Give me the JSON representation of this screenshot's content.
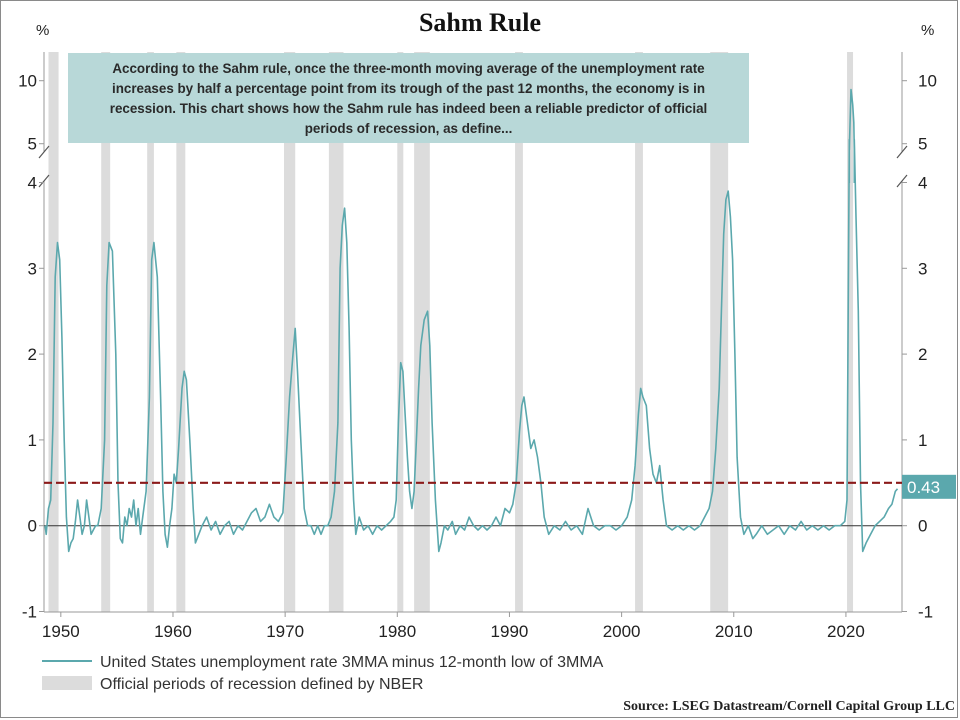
{
  "chart_data": {
    "type": "line",
    "title": "Sahm Rule",
    "y_unit_label": "%",
    "y_upper_ticks": [
      "10",
      "5"
    ],
    "y_lower_ticks": [
      "4",
      "3",
      "2",
      "1",
      "0",
      "-1"
    ],
    "x_ticks": [
      "1950",
      "1960",
      "1970",
      "1980",
      "1990",
      "2000",
      "2010",
      "2020"
    ],
    "x_range": [
      1948.5,
      2025
    ],
    "y_range_lower": [
      -1,
      4.5
    ],
    "y_range_upper": [
      4.5,
      10
    ],
    "threshold": 0.5,
    "last_value_label": "0.43",
    "annotation": "According to the Sahm rule, once the three-month moving average of the unemployment rate increases by half a percentage point from its trough of the past 12 months, the economy is in recession. This chart shows how the Sahm rule has indeed been a reliable predictor of official periods of recession, as define...",
    "legend": [
      "United States unemployment rate 3MMA minus 12-month low of 3MMA",
      "Official periods of recession defined by NBER"
    ],
    "source": "Source: LSEG Datastream/Cornell Capital Group LLC",
    "recessions": [
      [
        1948.9,
        1949.8
      ],
      [
        1953.6,
        1954.4
      ],
      [
        1957.7,
        1958.3
      ],
      [
        1960.3,
        1961.1
      ],
      [
        1969.9,
        1970.9
      ],
      [
        1973.9,
        1975.2
      ],
      [
        1980.0,
        1980.5
      ],
      [
        1981.5,
        1982.9
      ],
      [
        1990.5,
        1991.2
      ],
      [
        2001.2,
        2001.9
      ],
      [
        2007.9,
        2009.5
      ],
      [
        2020.1,
        2020.4
      ]
    ],
    "series": [
      {
        "name": "United States unemployment rate 3MMA minus 12-month low of 3MMA",
        "color": "#5ba8ad",
        "points": [
          [
            1948.6,
            0
          ],
          [
            1948.7,
            -0.1
          ],
          [
            1948.9,
            0.2
          ],
          [
            1949.1,
            0.3
          ],
          [
            1949.3,
            1.2
          ],
          [
            1949.5,
            2.9
          ],
          [
            1949.7,
            3.3
          ],
          [
            1949.9,
            3.1
          ],
          [
            1950.1,
            2.2
          ],
          [
            1950.3,
            1.0
          ],
          [
            1950.5,
            0.1
          ],
          [
            1950.7,
            -0.3
          ],
          [
            1950.9,
            -0.2
          ],
          [
            1951.1,
            -0.15
          ],
          [
            1951.3,
            0.05
          ],
          [
            1951.5,
            0.3
          ],
          [
            1951.7,
            0.1
          ],
          [
            1951.9,
            -0.1
          ],
          [
            1952.1,
            0
          ],
          [
            1952.3,
            0.3
          ],
          [
            1952.5,
            0.1
          ],
          [
            1952.7,
            -0.1
          ],
          [
            1952.9,
            -0.05
          ],
          [
            1953.1,
            0
          ],
          [
            1953.3,
            0
          ],
          [
            1953.6,
            0.2
          ],
          [
            1953.9,
            1.0
          ],
          [
            1954.1,
            2.8
          ],
          [
            1954.3,
            3.3
          ],
          [
            1954.6,
            3.2
          ],
          [
            1954.9,
            2.0
          ],
          [
            1955.1,
            0.5
          ],
          [
            1955.3,
            -0.15
          ],
          [
            1955.5,
            -0.2
          ],
          [
            1955.7,
            0.1
          ],
          [
            1955.9,
            0
          ],
          [
            1956.1,
            0.2
          ],
          [
            1956.3,
            0.1
          ],
          [
            1956.5,
            0.3
          ],
          [
            1956.7,
            0
          ],
          [
            1956.9,
            0.2
          ],
          [
            1957.1,
            -0.1
          ],
          [
            1957.3,
            0.1
          ],
          [
            1957.6,
            0.4
          ],
          [
            1957.9,
            1.5
          ],
          [
            1958.1,
            3.1
          ],
          [
            1958.3,
            3.3
          ],
          [
            1958.6,
            2.9
          ],
          [
            1958.9,
            1.5
          ],
          [
            1959.1,
            0.4
          ],
          [
            1959.3,
            -0.1
          ],
          [
            1959.5,
            -0.25
          ],
          [
            1959.7,
            0
          ],
          [
            1959.9,
            0.2
          ],
          [
            1960.1,
            0.6
          ],
          [
            1960.3,
            0.5
          ],
          [
            1960.5,
            0.9
          ],
          [
            1960.8,
            1.6
          ],
          [
            1961.0,
            1.8
          ],
          [
            1961.2,
            1.7
          ],
          [
            1961.5,
            1.0
          ],
          [
            1961.8,
            0.2
          ],
          [
            1962.0,
            -0.2
          ],
          [
            1962.3,
            -0.1
          ],
          [
            1962.6,
            0
          ],
          [
            1963,
            0.1
          ],
          [
            1963.4,
            -0.05
          ],
          [
            1963.8,
            0.05
          ],
          [
            1964.2,
            -0.1
          ],
          [
            1964.6,
            0
          ],
          [
            1965,
            0.05
          ],
          [
            1965.4,
            -0.1
          ],
          [
            1965.8,
            0
          ],
          [
            1966.2,
            -0.05
          ],
          [
            1966.6,
            0.05
          ],
          [
            1967,
            0.15
          ],
          [
            1967.4,
            0.2
          ],
          [
            1967.8,
            0.05
          ],
          [
            1968.2,
            0.1
          ],
          [
            1968.6,
            0.25
          ],
          [
            1969,
            0.1
          ],
          [
            1969.4,
            0.05
          ],
          [
            1969.8,
            0.15
          ],
          [
            1970.1,
            0.8
          ],
          [
            1970.4,
            1.5
          ],
          [
            1970.7,
            2.0
          ],
          [
            1970.9,
            2.3
          ],
          [
            1971.1,
            1.8
          ],
          [
            1971.4,
            1.0
          ],
          [
            1971.7,
            0.2
          ],
          [
            1972,
            0
          ],
          [
            1972.3,
            0
          ],
          [
            1972.6,
            -0.1
          ],
          [
            1972.9,
            0
          ],
          [
            1973.2,
            -0.1
          ],
          [
            1973.5,
            0
          ],
          [
            1973.8,
            0
          ],
          [
            1974.1,
            0.1
          ],
          [
            1974.4,
            0.4
          ],
          [
            1974.7,
            1.2
          ],
          [
            1974.9,
            3.0
          ],
          [
            1975.1,
            3.5
          ],
          [
            1975.3,
            3.7
          ],
          [
            1975.5,
            3.3
          ],
          [
            1975.7,
            2.3
          ],
          [
            1975.9,
            1.0
          ],
          [
            1976.1,
            0.3
          ],
          [
            1976.3,
            -0.1
          ],
          [
            1976.6,
            0.1
          ],
          [
            1977,
            -0.05
          ],
          [
            1977.4,
            0
          ],
          [
            1977.8,
            -0.1
          ],
          [
            1978.2,
            0
          ],
          [
            1978.6,
            -0.05
          ],
          [
            1979,
            0
          ],
          [
            1979.4,
            0.05
          ],
          [
            1979.7,
            0.1
          ],
          [
            1979.9,
            0.3
          ],
          [
            1980.1,
            1.2
          ],
          [
            1980.3,
            1.9
          ],
          [
            1980.5,
            1.8
          ],
          [
            1980.7,
            1.3
          ],
          [
            1980.9,
            0.8
          ],
          [
            1981.1,
            0.4
          ],
          [
            1981.3,
            0.2
          ],
          [
            1981.5,
            0.4
          ],
          [
            1981.7,
            1.0
          ],
          [
            1981.9,
            1.6
          ],
          [
            1982.1,
            2.1
          ],
          [
            1982.4,
            2.4
          ],
          [
            1982.7,
            2.5
          ],
          [
            1982.9,
            2.1
          ],
          [
            1983.1,
            1.2
          ],
          [
            1983.4,
            0.3
          ],
          [
            1983.7,
            -0.3
          ],
          [
            1983.9,
            -0.2
          ],
          [
            1984.2,
            0
          ],
          [
            1984.5,
            -0.05
          ],
          [
            1984.9,
            0.05
          ],
          [
            1985.2,
            -0.1
          ],
          [
            1985.6,
            0
          ],
          [
            1986,
            -0.05
          ],
          [
            1986.4,
            0.1
          ],
          [
            1986.8,
            0
          ],
          [
            1987.2,
            -0.05
          ],
          [
            1987.6,
            0
          ],
          [
            1988,
            -0.05
          ],
          [
            1988.4,
            0
          ],
          [
            1988.8,
            0.1
          ],
          [
            1989.2,
            0
          ],
          [
            1989.6,
            0.2
          ],
          [
            1990,
            0.15
          ],
          [
            1990.3,
            0.25
          ],
          [
            1990.6,
            0.5
          ],
          [
            1990.9,
            1.1
          ],
          [
            1991.1,
            1.4
          ],
          [
            1991.3,
            1.5
          ],
          [
            1991.6,
            1.2
          ],
          [
            1991.9,
            0.9
          ],
          [
            1992.2,
            1.0
          ],
          [
            1992.5,
            0.8
          ],
          [
            1992.8,
            0.5
          ],
          [
            1993.1,
            0.1
          ],
          [
            1993.5,
            -0.1
          ],
          [
            1994,
            0
          ],
          [
            1994.5,
            -0.05
          ],
          [
            1995,
            0.05
          ],
          [
            1995.5,
            -0.05
          ],
          [
            1996,
            0
          ],
          [
            1996.5,
            -0.1
          ],
          [
            1997,
            0.2
          ],
          [
            1997.5,
            0
          ],
          [
            1998,
            -0.05
          ],
          [
            1998.5,
            0
          ],
          [
            1999,
            0
          ],
          [
            1999.5,
            -0.05
          ],
          [
            2000,
            0
          ],
          [
            2000.5,
            0.1
          ],
          [
            2000.9,
            0.3
          ],
          [
            2001.2,
            0.7
          ],
          [
            2001.5,
            1.3
          ],
          [
            2001.7,
            1.6
          ],
          [
            2001.9,
            1.5
          ],
          [
            2002.2,
            1.4
          ],
          [
            2002.5,
            0.9
          ],
          [
            2002.8,
            0.6
          ],
          [
            2003.1,
            0.5
          ],
          [
            2003.4,
            0.7
          ],
          [
            2003.7,
            0.3
          ],
          [
            2004,
            0
          ],
          [
            2004.5,
            -0.05
          ],
          [
            2005,
            0
          ],
          [
            2005.5,
            -0.05
          ],
          [
            2006,
            0
          ],
          [
            2006.5,
            -0.05
          ],
          [
            2007,
            0
          ],
          [
            2007.4,
            0.1
          ],
          [
            2007.8,
            0.2
          ],
          [
            2008.1,
            0.4
          ],
          [
            2008.4,
            0.9
          ],
          [
            2008.7,
            1.6
          ],
          [
            2008.9,
            2.5
          ],
          [
            2009.1,
            3.4
          ],
          [
            2009.3,
            3.8
          ],
          [
            2009.5,
            3.9
          ],
          [
            2009.7,
            3.6
          ],
          [
            2009.9,
            3.1
          ],
          [
            2010.1,
            2.0
          ],
          [
            2010.3,
            0.8
          ],
          [
            2010.6,
            0.1
          ],
          [
            2010.9,
            -0.1
          ],
          [
            2011.3,
            0
          ],
          [
            2011.7,
            -0.15
          ],
          [
            2012,
            -0.1
          ],
          [
            2012.5,
            0
          ],
          [
            2013,
            -0.1
          ],
          [
            2013.5,
            -0.05
          ],
          [
            2014,
            0
          ],
          [
            2014.5,
            -0.1
          ],
          [
            2015,
            0
          ],
          [
            2015.5,
            -0.05
          ],
          [
            2016,
            0.05
          ],
          [
            2016.5,
            -0.05
          ],
          [
            2017,
            0
          ],
          [
            2017.5,
            -0.05
          ],
          [
            2018,
            0
          ],
          [
            2018.5,
            -0.05
          ],
          [
            2019,
            0
          ],
          [
            2019.5,
            0
          ],
          [
            2019.9,
            0.05
          ],
          [
            2020.1,
            0.3
          ],
          [
            2020.3,
            4.5
          ],
          [
            2020.45,
            9.3
          ],
          [
            2020.6,
            8.1
          ],
          [
            2020.7,
            6.7
          ],
          [
            2020.75,
            4.5
          ],
          [
            2020.9,
            3.6
          ],
          [
            2021.1,
            2.5
          ],
          [
            2021.3,
            0.5
          ],
          [
            2021.5,
            -0.3
          ],
          [
            2021.8,
            -0.2
          ],
          [
            2022.2,
            -0.1
          ],
          [
            2022.6,
            0
          ],
          [
            2023,
            0.05
          ],
          [
            2023.4,
            0.1
          ],
          [
            2023.8,
            0.2
          ],
          [
            2024.1,
            0.25
          ],
          [
            2024.4,
            0.4
          ],
          [
            2024.6,
            0.43
          ]
        ]
      }
    ]
  }
}
